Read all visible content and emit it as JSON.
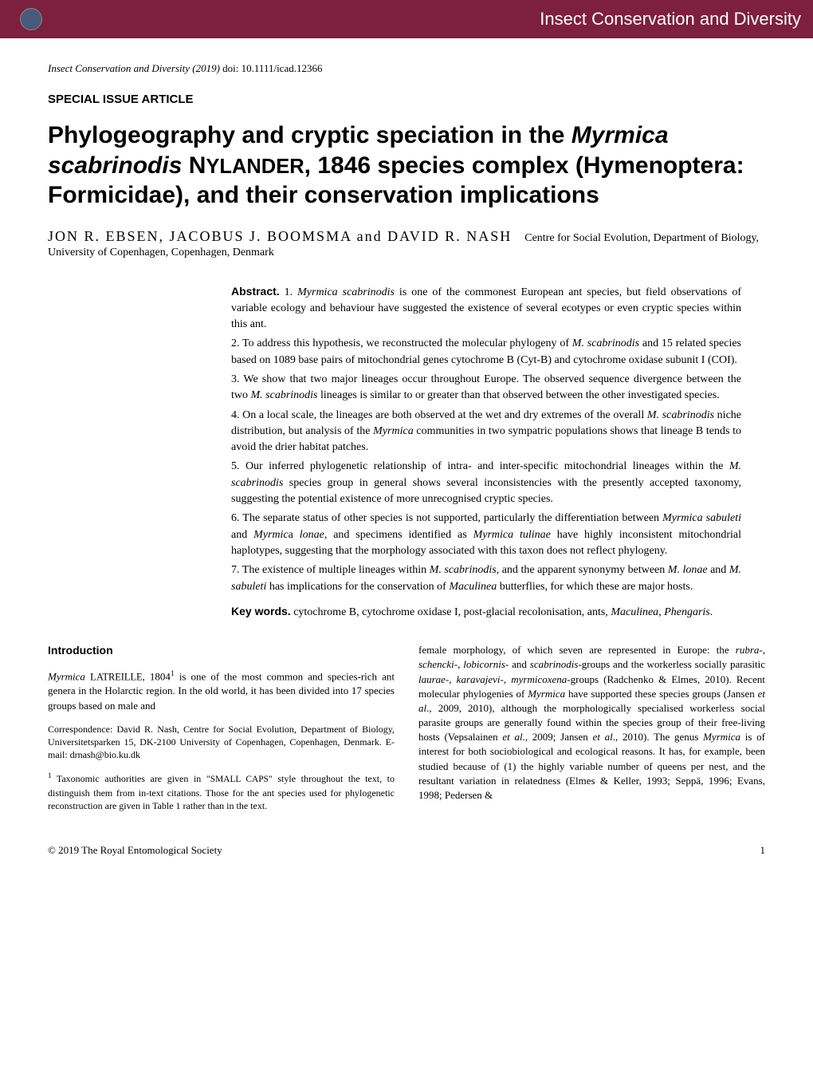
{
  "header": {
    "journal_name": "Insect Conservation and Diversity"
  },
  "citation": {
    "journal": "Insect Conservation and Diversity",
    "year": "(2019)",
    "doi_label": "doi:",
    "doi": "10.1111/icad.12366"
  },
  "article_type": "SPECIAL ISSUE ARTICLE",
  "title_html": "Phylogeography and cryptic speciation in the <span class=\"italic\">Myrmica scabrinodis</span> N<span class=\"smallcaps\">YLANDER</span>, 1846 species complex (Hymenoptera: Formicidae), and their conservation implications",
  "authors": "JON R. EBSEN, JACOBUS J. BOOMSMA and DAVID R. NASH",
  "affiliation": "Centre for Social Evolution, Department of Biology, University of Copenhagen, Copenhagen, Denmark",
  "abstract": {
    "label": "Abstract.",
    "items": [
      "1. <span class=\"italic\">Myrmica scabrinodis</span> is one of the commonest European ant species, but field observations of variable ecology and behaviour have suggested the existence of several ecotypes or even cryptic species within this ant.",
      "2. To address this hypothesis, we reconstructed the molecular phylogeny of <span class=\"italic\">M. scabrinodis</span> and 15 related species based on 1089 base pairs of mitochondrial genes cytochrome B (Cyt-B) and cytochrome oxidase subunit I (COI).",
      "3. We show that two major lineages occur throughout Europe. The observed sequence divergence between the two <span class=\"italic\">M. scabrinodis</span> lineages is similar to or greater than that observed between the other investigated species.",
      "4. On a local scale, the lineages are both observed at the wet and dry extremes of the overall <span class=\"italic\">M. scabrinodis</span> niche distribution, but analysis of the <span class=\"italic\">Myrmica</span> communities in two sympatric populations shows that lineage B tends to avoid the drier habitat patches.",
      "5. Our inferred phylogenetic relationship of intra- and inter-specific mitochondrial lineages within the <span class=\"italic\">M. scabrinodis</span> species group in general shows several inconsistencies with the presently accepted taxonomy, suggesting the potential existence of more unrecognised cryptic species.",
      "6. The separate status of other species is not supported, particularly the differentiation between <span class=\"italic\">Myrmica sabuleti</span> and <span class=\"italic\">Myrmic</span>a <span class=\"italic\">lonae</span>, and specimens identified as <span class=\"italic\">Myrmica tulinae</span> have highly inconsistent mitochondrial haplotypes, suggesting that the morphology associated with this taxon does not reflect phylogeny.",
      "7. The existence of multiple lineages within <span class=\"italic\">M. scabrinodis</span>, and the apparent synonymy between <span class=\"italic\">M. lonae</span> and <span class=\"italic\">M. sabuleti</span> has implications for the conservation of <span class=\"italic\">Maculinea</span> butterflies, for which these are major hosts."
    ]
  },
  "keywords": {
    "label": "Key words.",
    "text": "cytochrome B, cytochrome oxidase I, post-glacial recolonisation, ants, <span class=\"italic\">Maculinea</span>, <span class=\"italic\">Phengaris</span>."
  },
  "introduction": {
    "heading": "Introduction",
    "left_para": "<span class=\"italic\">Myrmica</span> L<span class=\"smallcaps-inline\">ATREILLE</span>, 1804<span class=\"sup\">1</span> is one of the most common and species-rich ant genera in the Holarctic region. In the old world, it has been divided into 17 species groups based on male and",
    "right_para": "female morphology, of which seven are represented in Europe: the <span class=\"italic\">rubra-, schencki-, lobicornis-</span> and <span class=\"italic\">scabrinodis-</span>groups and the workerless socially parasitic <span class=\"italic\">laurae-</span>, <span class=\"italic\">karavajevi-</span>, <span class=\"italic\">myrmicoxena-</span>groups (Radchenko & Elmes, 2010). Recent molecular phylogenies of <span class=\"italic\">Myrmica</span> have supported these species groups (Jansen <span class=\"italic\">et al</span>., 2009, 2010), although the morphologically specialised workerless social parasite groups are generally found within the species group of their free-living hosts (Vepsalainen <span class=\"italic\">et al</span>., 2009; Jansen <span class=\"italic\">et al</span>., 2010). The genus <span class=\"italic\">Myrmica</span> is of interest for both sociobiological and ecological reasons. It has, for example, been studied because of (1) the highly variable number of queens per nest, and the resultant variation in relatedness (Elmes & Keller, 1993; Seppä, 1996; Evans, 1998; Pedersen &"
  },
  "correspondence": "Correspondence: David R. Nash, Centre for Social Evolution, Department of Biology, Universitetsparken 15, DK-2100 University of Copenhagen, Copenhagen, Denmark. E-mail: drnash@bio.ku.dk",
  "footnote1": "<span class=\"sup\">1</span> Taxonomic authorities are given in \"<span class=\"smallcaps-inline\">SMALL CAPS</span>\" style throughout the text, to distinguish them from in-text citations. Those for the ant species used for phylogenetic reconstruction are given in Table 1 rather than in the text.",
  "footer": {
    "copyright": "© 2019 The Royal Entomological Society",
    "page": "1"
  },
  "colors": {
    "header_bg": "#7d1f3e",
    "header_text": "#ffffff",
    "body_text": "#000000",
    "background": "#ffffff"
  }
}
